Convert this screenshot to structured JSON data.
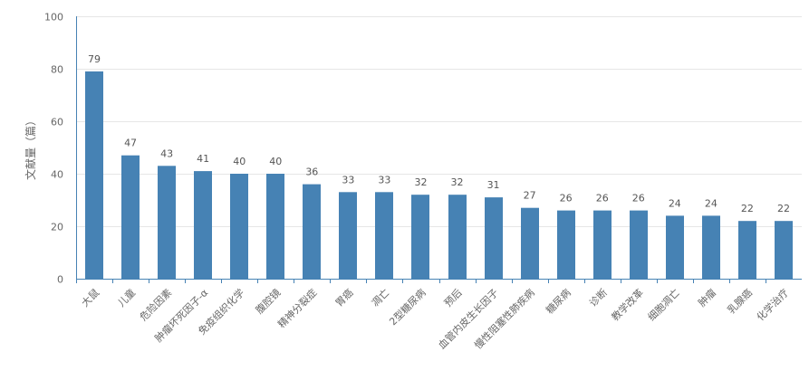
{
  "chart_data": {
    "type": "bar",
    "title": "",
    "xlabel": "",
    "ylabel": "文献量（篇）",
    "ylim": [
      0,
      100
    ],
    "yticks": [
      0,
      20,
      40,
      60,
      80,
      100
    ],
    "grid": true,
    "categories": [
      "大鼠",
      "儿童",
      "危险因素",
      "肿瘤坏死因子-α",
      "免疫组织化学",
      "腹腔镜",
      "精神分裂症",
      "胃癌",
      "凋亡",
      "2型糖尿病",
      "预后",
      "血管内皮生长因子",
      "慢性阻塞性肺疾病",
      "糖尿病",
      "诊断",
      "教学改革",
      "细胞凋亡",
      "肿瘤",
      "乳腺癌",
      "化学治疗"
    ],
    "values": [
      79,
      47,
      43,
      41,
      40,
      40,
      36,
      33,
      33,
      32,
      32,
      31,
      27,
      26,
      26,
      26,
      24,
      24,
      22,
      22
    ],
    "colors": {
      "bar": "#4682b4",
      "axis": "#4682b4",
      "grid": "#e6e6e6",
      "text": "#666666"
    }
  }
}
